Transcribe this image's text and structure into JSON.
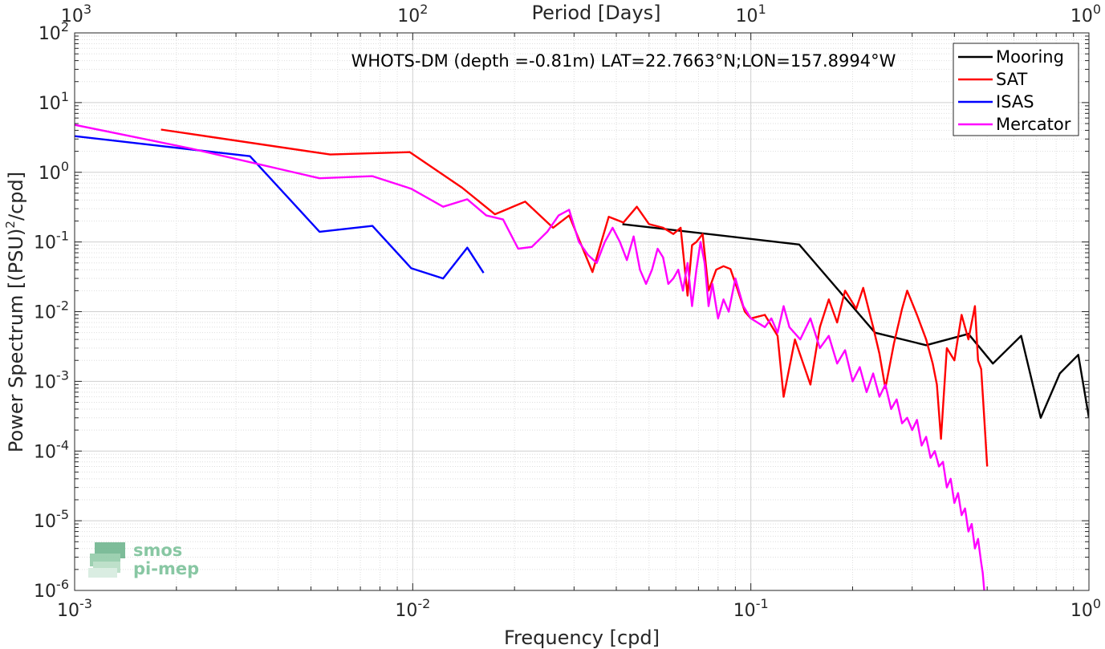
{
  "chart_data": {
    "type": "line",
    "title": "WHOTS-DM (depth =-0.81m) LAT=22.7663°N;LON=157.8994°W",
    "xlabel": "Frequency [cpd]",
    "ylabel_main": "Power Spectrum [(PSU)",
    "ylabel_sup": "2",
    "ylabel_tail": "/cpd]",
    "top_xlabel": "Period [Days]",
    "xscale": "log",
    "yscale": "log",
    "xlim": [
      0.001,
      1
    ],
    "ylim": [
      1e-06,
      100
    ],
    "grid": true,
    "legend_position": "top-right",
    "x_ticks": [
      {
        "value": 0.001,
        "base": "10",
        "exp": "-3"
      },
      {
        "value": 0.01,
        "base": "10",
        "exp": "-2"
      },
      {
        "value": 0.1,
        "base": "10",
        "exp": "-1"
      },
      {
        "value": 1,
        "base": "10",
        "exp": "0"
      }
    ],
    "y_ticks": [
      {
        "value": 100,
        "base": "10",
        "exp": "2"
      },
      {
        "value": 10,
        "base": "10",
        "exp": "1"
      },
      {
        "value": 1,
        "base": "10",
        "exp": "0"
      },
      {
        "value": 0.1,
        "base": "10",
        "exp": "-1"
      },
      {
        "value": 0.01,
        "base": "10",
        "exp": "-2"
      },
      {
        "value": 0.001,
        "base": "10",
        "exp": "-3"
      },
      {
        "value": 0.0001,
        "base": "10",
        "exp": "-4"
      },
      {
        "value": 1e-05,
        "base": "10",
        "exp": "-5"
      },
      {
        "value": 1e-06,
        "base": "10",
        "exp": "-6"
      }
    ],
    "top_ticks": [
      {
        "value": 0.001,
        "base": "10",
        "exp": "3"
      },
      {
        "value": 0.01,
        "base": "10",
        "exp": "2"
      },
      {
        "value": 0.1,
        "base": "10",
        "exp": "1"
      },
      {
        "value": 1,
        "base": "10",
        "exp": "0"
      }
    ],
    "series": [
      {
        "name": "Mooring",
        "color": "#000000",
        "points": [
          [
            0.0417,
            0.18
          ],
          [
            0.139,
            0.092
          ],
          [
            0.233,
            0.005
          ],
          [
            0.33,
            0.0033
          ],
          [
            0.44,
            0.0048
          ],
          [
            0.52,
            0.0018
          ],
          [
            0.63,
            0.0045
          ],
          [
            0.72,
            0.0003
          ],
          [
            0.82,
            0.0013
          ],
          [
            0.93,
            0.0024
          ],
          [
            1.0,
            0.0003
          ]
        ]
      },
      {
        "name": "SAT",
        "color": "#ff0000",
        "points": [
          [
            0.0018,
            4.1
          ],
          [
            0.0057,
            1.8
          ],
          [
            0.0098,
            1.95
          ],
          [
            0.014,
            0.6
          ],
          [
            0.0175,
            0.25
          ],
          [
            0.0215,
            0.38
          ],
          [
            0.026,
            0.16
          ],
          [
            0.029,
            0.24
          ],
          [
            0.034,
            0.037
          ],
          [
            0.038,
            0.23
          ],
          [
            0.042,
            0.19
          ],
          [
            0.046,
            0.32
          ],
          [
            0.05,
            0.18
          ],
          [
            0.055,
            0.16
          ],
          [
            0.059,
            0.13
          ],
          [
            0.062,
            0.16
          ],
          [
            0.065,
            0.017
          ],
          [
            0.067,
            0.09
          ],
          [
            0.069,
            0.1
          ],
          [
            0.072,
            0.13
          ],
          [
            0.075,
            0.02
          ],
          [
            0.079,
            0.04
          ],
          [
            0.083,
            0.045
          ],
          [
            0.087,
            0.041
          ],
          [
            0.091,
            0.022
          ],
          [
            0.096,
            0.01
          ],
          [
            0.1,
            0.008
          ],
          [
            0.11,
            0.009
          ],
          [
            0.12,
            0.0045
          ],
          [
            0.125,
            0.0006
          ],
          [
            0.135,
            0.004
          ],
          [
            0.15,
            0.0009
          ],
          [
            0.16,
            0.006
          ],
          [
            0.17,
            0.015
          ],
          [
            0.18,
            0.007
          ],
          [
            0.19,
            0.02
          ],
          [
            0.205,
            0.011
          ],
          [
            0.215,
            0.022
          ],
          [
            0.23,
            0.006
          ],
          [
            0.24,
            0.0025
          ],
          [
            0.25,
            0.0008
          ],
          [
            0.265,
            0.0035
          ],
          [
            0.28,
            0.011
          ],
          [
            0.29,
            0.02
          ],
          [
            0.31,
            0.009
          ],
          [
            0.33,
            0.004
          ],
          [
            0.345,
            0.0018
          ],
          [
            0.355,
            0.0009
          ],
          [
            0.365,
            0.00015
          ],
          [
            0.38,
            0.003
          ],
          [
            0.4,
            0.002
          ],
          [
            0.42,
            0.009
          ],
          [
            0.44,
            0.004
          ],
          [
            0.46,
            0.012
          ],
          [
            0.47,
            0.002
          ],
          [
            0.48,
            0.0015
          ],
          [
            0.49,
            0.0003
          ],
          [
            0.5,
            6e-05
          ]
        ]
      },
      {
        "name": "ISAS",
        "color": "#0000ff",
        "points": [
          [
            0.001,
            3.3
          ],
          [
            0.0033,
            1.7
          ],
          [
            0.0053,
            0.14
          ],
          [
            0.0076,
            0.17
          ],
          [
            0.0099,
            0.042
          ],
          [
            0.0123,
            0.03
          ],
          [
            0.0145,
            0.083
          ],
          [
            0.0162,
            0.036
          ]
        ]
      },
      {
        "name": "Mercator",
        "color": "#ff00ff",
        "points": [
          [
            0.001,
            4.8
          ],
          [
            0.0022,
            2.2
          ],
          [
            0.0053,
            0.82
          ],
          [
            0.0076,
            0.88
          ],
          [
            0.0099,
            0.58
          ],
          [
            0.0123,
            0.32
          ],
          [
            0.0145,
            0.41
          ],
          [
            0.0165,
            0.24
          ],
          [
            0.0185,
            0.21
          ],
          [
            0.0205,
            0.08
          ],
          [
            0.0225,
            0.085
          ],
          [
            0.025,
            0.14
          ],
          [
            0.027,
            0.24
          ],
          [
            0.029,
            0.29
          ],
          [
            0.031,
            0.1
          ],
          [
            0.033,
            0.065
          ],
          [
            0.035,
            0.05
          ],
          [
            0.037,
            0.1
          ],
          [
            0.039,
            0.16
          ],
          [
            0.041,
            0.1
          ],
          [
            0.043,
            0.055
          ],
          [
            0.045,
            0.12
          ],
          [
            0.047,
            0.04
          ],
          [
            0.049,
            0.025
          ],
          [
            0.051,
            0.04
          ],
          [
            0.053,
            0.08
          ],
          [
            0.055,
            0.06
          ],
          [
            0.057,
            0.025
          ],
          [
            0.059,
            0.03
          ],
          [
            0.061,
            0.04
          ],
          [
            0.063,
            0.02
          ],
          [
            0.065,
            0.05
          ],
          [
            0.067,
            0.012
          ],
          [
            0.069,
            0.04
          ],
          [
            0.071,
            0.1
          ],
          [
            0.073,
            0.05
          ],
          [
            0.075,
            0.012
          ],
          [
            0.077,
            0.025
          ],
          [
            0.08,
            0.008
          ],
          [
            0.083,
            0.015
          ],
          [
            0.086,
            0.01
          ],
          [
            0.09,
            0.03
          ],
          [
            0.095,
            0.012
          ],
          [
            0.1,
            0.008
          ],
          [
            0.11,
            0.006
          ],
          [
            0.115,
            0.008
          ],
          [
            0.12,
            0.005
          ],
          [
            0.125,
            0.012
          ],
          [
            0.13,
            0.006
          ],
          [
            0.14,
            0.004
          ],
          [
            0.15,
            0.008
          ],
          [
            0.16,
            0.003
          ],
          [
            0.17,
            0.0045
          ],
          [
            0.18,
            0.0018
          ],
          [
            0.19,
            0.0028
          ],
          [
            0.2,
            0.001
          ],
          [
            0.21,
            0.0016
          ],
          [
            0.22,
            0.0007
          ],
          [
            0.23,
            0.0013
          ],
          [
            0.24,
            0.0006
          ],
          [
            0.25,
            0.0009
          ],
          [
            0.26,
            0.0004
          ],
          [
            0.27,
            0.00055
          ],
          [
            0.28,
            0.00025
          ],
          [
            0.29,
            0.0003
          ],
          [
            0.3,
            0.0002
          ],
          [
            0.31,
            0.00028
          ],
          [
            0.32,
            0.00012
          ],
          [
            0.33,
            0.00016
          ],
          [
            0.34,
            8e-05
          ],
          [
            0.35,
            0.0001
          ],
          [
            0.36,
            6e-05
          ],
          [
            0.37,
            7e-05
          ],
          [
            0.38,
            3e-05
          ],
          [
            0.39,
            4e-05
          ],
          [
            0.4,
            1.8e-05
          ],
          [
            0.41,
            2.5e-05
          ],
          [
            0.42,
            1.2e-05
          ],
          [
            0.43,
            1.5e-05
          ],
          [
            0.44,
            7e-06
          ],
          [
            0.45,
            9e-06
          ],
          [
            0.46,
            4e-06
          ],
          [
            0.47,
            5.5e-06
          ],
          [
            0.48,
            2.5e-06
          ],
          [
            0.485,
            1.8e-06
          ],
          [
            0.49,
            1e-06
          ]
        ]
      }
    ]
  },
  "logo": {
    "line1": "smos",
    "line2": "pi-mep"
  }
}
